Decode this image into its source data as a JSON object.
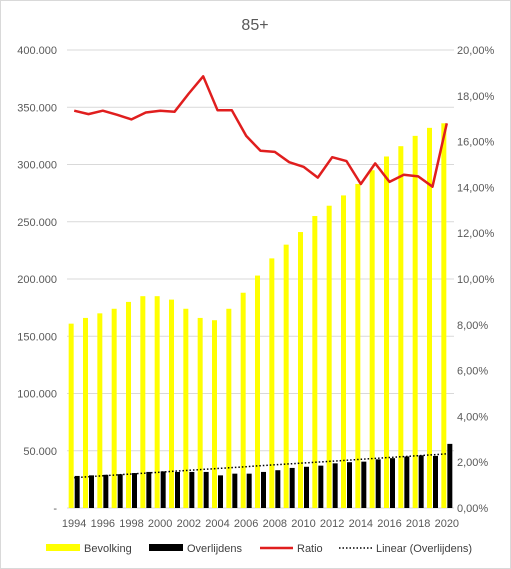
{
  "chart_data": {
    "type": "bar",
    "title": "85+",
    "categories": [
      "1994",
      "1995",
      "1996",
      "1997",
      "1998",
      "1999",
      "2000",
      "2001",
      "2002",
      "2003",
      "2004",
      "2005",
      "2006",
      "2007",
      "2008",
      "2009",
      "2010",
      "2011",
      "2012",
      "2013",
      "2014",
      "2015",
      "2016",
      "2017",
      "2018",
      "2019",
      "2020"
    ],
    "x_tick_labels": [
      "1994",
      "1996",
      "1998",
      "2000",
      "2002",
      "2004",
      "2006",
      "2008",
      "2010",
      "2012",
      "2014",
      "2016",
      "2018",
      "2020"
    ],
    "series": [
      {
        "name": "Bevolking",
        "kind": "bar",
        "axis": "left",
        "color": "#ffff00",
        "values": [
          161000,
          166000,
          170000,
          174000,
          180000,
          185000,
          185000,
          182000,
          174000,
          166000,
          164000,
          174000,
          188000,
          203000,
          218000,
          230000,
          241000,
          255000,
          264000,
          273000,
          283000,
          295000,
          307000,
          316000,
          325000,
          332000,
          336000
        ]
      },
      {
        "name": "Overlijdens",
        "kind": "bar",
        "axis": "left",
        "color": "#000000",
        "values": [
          28000,
          28500,
          29000,
          29500,
          30500,
          31500,
          32000,
          31500,
          31500,
          31500,
          28500,
          30000,
          30000,
          31500,
          33000,
          35000,
          36000,
          37000,
          39000,
          40000,
          40500,
          42500,
          43500,
          45000,
          46000,
          45500,
          56000
        ]
      },
      {
        "name": "Ratio",
        "kind": "line",
        "axis": "right",
        "color": "#e01e1e",
        "values": [
          0.1735,
          0.172,
          0.1735,
          0.1717,
          0.1697,
          0.1727,
          0.1735,
          0.173,
          0.181,
          0.1885,
          0.1737,
          0.1737,
          0.1625,
          0.156,
          0.1555,
          0.151,
          0.149,
          0.1443,
          0.1532,
          0.1515,
          0.1415,
          0.1505,
          0.1424,
          0.1455,
          0.1448,
          0.1403,
          0.168
        ]
      },
      {
        "name": "Linear (Overlijdens)",
        "kind": "trendline",
        "axis": "left",
        "color": "#000000",
        "values": [
          26500,
          27300,
          28100,
          28900,
          29700,
          30500,
          31300,
          32100,
          32900,
          33700,
          34500,
          35300,
          36100,
          36900,
          37700,
          38500,
          39300,
          40100,
          40900,
          41700,
          42500,
          43300,
          44100,
          44900,
          45700,
          46500,
          47300
        ]
      }
    ],
    "y_left": {
      "ylim": [
        0,
        400000
      ],
      "ticks": [
        "-",
        "50.000",
        "100.000",
        "150.000",
        "200.000",
        "250.000",
        "300.000",
        "350.000",
        "400.000"
      ]
    },
    "y_right": {
      "ylim": [
        0,
        0.2
      ],
      "ticks": [
        "0,00%",
        "2,00%",
        "4,00%",
        "6,00%",
        "8,00%",
        "10,00%",
        "12,00%",
        "14,00%",
        "16,00%",
        "18,00%",
        "20,00%"
      ]
    },
    "grid": true,
    "legend_position": "bottom"
  }
}
